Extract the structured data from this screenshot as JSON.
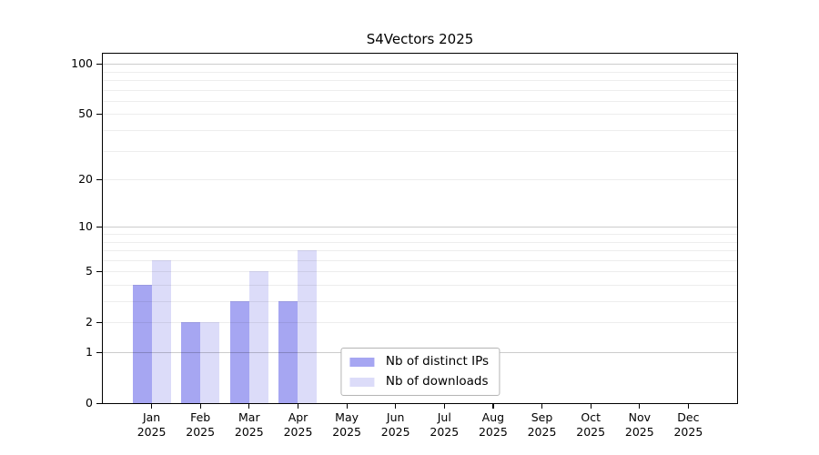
{
  "page": {
    "background": "#ffffff"
  },
  "chart_data": {
    "type": "bar",
    "title": "S4Vectors 2025",
    "year": "2025",
    "categories": [
      "Jan",
      "Feb",
      "Mar",
      "Apr",
      "May",
      "Jun",
      "Jul",
      "Aug",
      "Sep",
      "Oct",
      "Nov",
      "Dec"
    ],
    "series": [
      {
        "name": "Nb of distinct IPs",
        "color": "#a6a6f2",
        "values": [
          4,
          2,
          3,
          3,
          0,
          0,
          0,
          0,
          0,
          0,
          0,
          0
        ]
      },
      {
        "name": "Nb of downloads",
        "color": "#dcdcf9",
        "values": [
          6,
          2,
          5,
          7,
          0,
          0,
          0,
          0,
          0,
          0,
          0,
          0
        ]
      }
    ],
    "xlabel": "",
    "ylabel": "",
    "y_ticks": [
      0,
      1,
      2,
      5,
      10,
      20,
      50,
      100
    ],
    "y_scale": "log10(1+value)",
    "ylim": [
      0,
      115
    ],
    "gridlines_major": [
      1,
      10,
      100
    ],
    "gridlines_minor": [
      2,
      3,
      4,
      5,
      6,
      7,
      8,
      9,
      20,
      30,
      40,
      50,
      60,
      70,
      80,
      90
    ],
    "grid": true,
    "legend_position": "lower center",
    "colors": {
      "axis": "#000000",
      "major_grid": "rgba(0,0,0,0.20)",
      "minor_grid": "rgba(0,0,0,0.07)",
      "text": "#000000",
      "background": "#ffffff"
    }
  }
}
